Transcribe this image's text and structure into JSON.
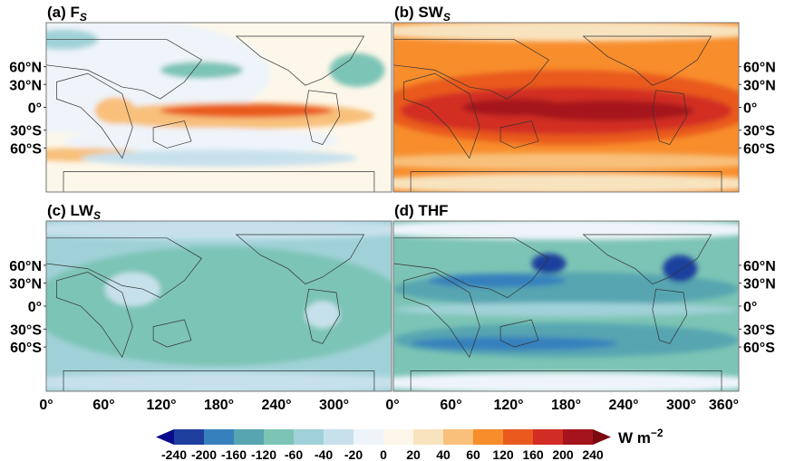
{
  "panels": [
    {
      "label": "(a) F",
      "subscript": "S",
      "field": "Fs"
    },
    {
      "label": "(b) SW",
      "subscript": "S",
      "field": "SWs"
    },
    {
      "label": "(c) LW",
      "subscript": "S",
      "field": "LWs"
    },
    {
      "label": "(d) THF",
      "subscript": "",
      "field": "THF"
    }
  ],
  "lat_ticks": [
    "60°N",
    "30°N",
    "0°",
    "30°S",
    "60°S"
  ],
  "lon_ticks": [
    "0°",
    "60°",
    "120°",
    "180°",
    "240°",
    "300°",
    "360°"
  ],
  "colorbar": {
    "unit": "W m",
    "unit_exponent": "−2",
    "ticks": [
      "-240",
      "-200",
      "-160",
      "-120",
      "-60",
      "-40",
      "-20",
      "0",
      "20",
      "40",
      "60",
      "120",
      "160",
      "200",
      "240"
    ],
    "colors": [
      "#1f3f9e",
      "#3680bd",
      "#57a5b1",
      "#7cc4b5",
      "#a0d1d8",
      "#c7e1ec",
      "#eef4fa",
      "#fdf7ea",
      "#f8e3bf",
      "#f8c07a",
      "#f88d2c",
      "#e95a1f",
      "#d22d24",
      "#a5141c"
    ],
    "extend_low": "#0a0a8c",
    "extend_high": "#7a0a10"
  }
}
